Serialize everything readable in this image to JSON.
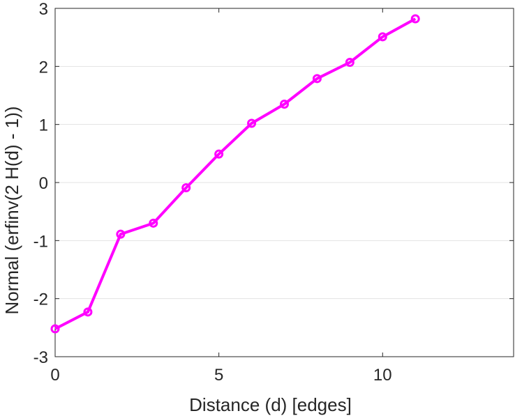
{
  "chart_data": {
    "type": "line",
    "title": "",
    "xlabel": "Distance (d) [edges]",
    "ylabel": "Normal (erfinv(2 H(d) - 1))",
    "xlim": [
      0,
      14
    ],
    "ylim": [
      -3,
      3
    ],
    "xticks": [
      0,
      5,
      10
    ],
    "xtick_labels": [
      "0",
      "5",
      "10"
    ],
    "yticks": [
      -3,
      -2,
      -1,
      0,
      1,
      2,
      3
    ],
    "ytick_labels": [
      "-3",
      "-2",
      "-1",
      "0",
      "1",
      "2",
      "3"
    ],
    "grid": "horizontal",
    "series": [
      {
        "color": "#ff00ff",
        "marker": "circle",
        "x": [
          0,
          1,
          2,
          3,
          4,
          5,
          6,
          7,
          8,
          9,
          10,
          11
        ],
        "y": [
          -2.52,
          -2.23,
          -0.89,
          -0.7,
          -0.09,
          0.49,
          1.02,
          1.35,
          1.79,
          2.07,
          2.51,
          2.82
        ]
      }
    ]
  }
}
